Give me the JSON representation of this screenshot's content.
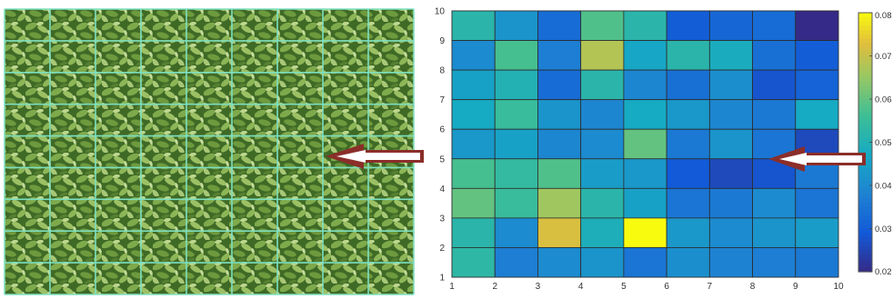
{
  "chart_data": {
    "type": "heatmap",
    "title": "",
    "xlabel": "",
    "ylabel": "",
    "xlim": [
      1,
      10
    ],
    "ylim": [
      1,
      10
    ],
    "xticks": [
      "1",
      "2",
      "3",
      "4",
      "5",
      "6",
      "7",
      "8",
      "9",
      "10"
    ],
    "yticks": [
      "1",
      "2",
      "3",
      "4",
      "5",
      "6",
      "7",
      "8",
      "9",
      "10"
    ],
    "rows_top_to_bottom": [
      [
        0.052,
        0.042,
        0.033,
        0.058,
        0.052,
        0.03,
        0.032,
        0.033,
        0.02
      ],
      [
        0.04,
        0.057,
        0.037,
        0.068,
        0.046,
        0.052,
        0.048,
        0.034,
        0.03
      ],
      [
        0.045,
        0.05,
        0.033,
        0.052,
        0.039,
        0.034,
        0.041,
        0.028,
        0.031
      ],
      [
        0.047,
        0.055,
        0.042,
        0.039,
        0.047,
        0.043,
        0.039,
        0.036,
        0.047
      ],
      [
        0.043,
        0.045,
        0.039,
        0.04,
        0.06,
        0.036,
        0.042,
        0.035,
        0.026
      ],
      [
        0.057,
        0.054,
        0.058,
        0.044,
        0.043,
        0.029,
        0.026,
        0.028,
        0.036
      ],
      [
        0.06,
        0.055,
        0.066,
        0.052,
        0.045,
        0.035,
        0.036,
        0.04,
        0.035
      ],
      [
        0.052,
        0.04,
        0.072,
        0.049,
        0.081,
        0.043,
        0.04,
        0.042,
        0.044
      ],
      [
        0.053,
        0.037,
        0.04,
        0.042,
        0.035,
        0.041,
        0.038,
        0.037,
        0.036
      ]
    ],
    "colorbar": {
      "min": 0.02,
      "max": 0.08,
      "ticks": [
        "0.02",
        "0.03",
        "0.04",
        "0.05",
        "0.06",
        "0.07",
        "0.08"
      ]
    },
    "grid": true,
    "legend": "none"
  },
  "photo": {
    "description_icon": "crop-field-photo",
    "grid_color": "#7ee0c0",
    "cells_x": 9,
    "cells_y": 9
  },
  "arrows": {
    "color": "#8b2e2a",
    "icon": "arrow-left-icon"
  }
}
